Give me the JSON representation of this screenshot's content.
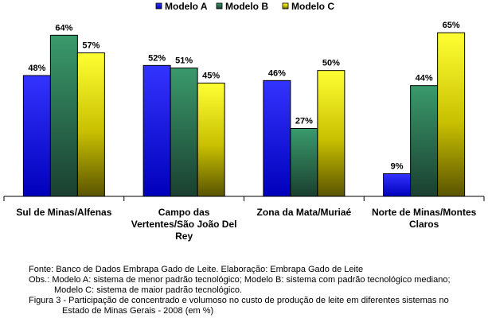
{
  "chart_data": {
    "type": "bar",
    "categories": [
      [
        "Sul de Minas/Alfenas"
      ],
      [
        "Campo das",
        "Vertentes/São João Del",
        "Rey"
      ],
      [
        "Zona da Mata/Muriaé"
      ],
      [
        "Norte de Minas/Montes",
        "Claros"
      ]
    ],
    "series": [
      {
        "name": "Modelo A",
        "values": [
          48,
          52,
          46,
          9
        ],
        "labels": [
          "48%",
          "52%",
          "46%",
          "9%"
        ]
      },
      {
        "name": "Modelo B",
        "values": [
          64,
          51,
          27,
          44
        ],
        "labels": [
          "64%",
          "51%",
          "27%",
          "44%"
        ]
      },
      {
        "name": "Modelo C",
        "values": [
          57,
          45,
          50,
          65
        ],
        "labels": [
          "57%",
          "45%",
          "50%",
          "65%"
        ]
      }
    ],
    "ylim": [
      0,
      66
    ],
    "grid": false,
    "legend": "top-center",
    "colors": {
      "Modelo A": [
        "#0000cc",
        "#3333ff"
      ],
      "Modelo B": [
        "#1f4f3a",
        "#3a9a6c"
      ],
      "Modelo C": [
        "#7f7a00",
        "#ffff33"
      ]
    }
  },
  "notes": {
    "fonte": "Fonte: Banco de Dados Embrapa Gado de Leite. Elaboração: Embrapa Gado de Leite",
    "obs1": "Obs.:  Modelo A: sistema de menor padrão tecnológico; Modelo B: sistema com padrão tecnológico mediano;",
    "obs2": "Modelo C: sistema de maior padrão tecnológico.",
    "fig1": "Figura 3 - Participação de concentrado e volumoso no custo de produção de leite em diferentes sistemas no",
    "fig2": "Estado de Minas Gerais - 2008 (em %)"
  }
}
